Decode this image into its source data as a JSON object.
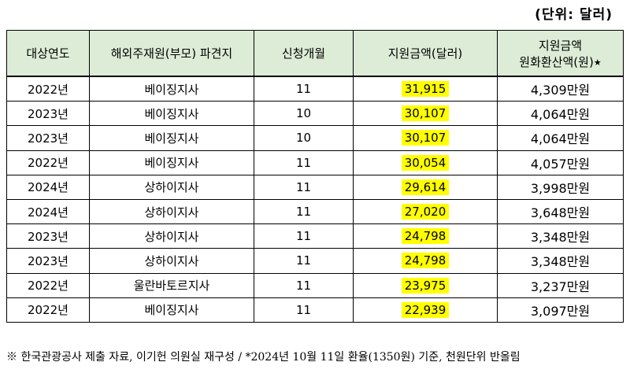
{
  "unit_note": "(단위: 달러)",
  "headers": {
    "year": "대상연도",
    "parent": "해외주재원(부모) 파견지",
    "count": "신청개월",
    "amount": "지원금액(달러)",
    "won_line1": "지원금액",
    "won_line2": "원화환산액(원)",
    "won_star": "★"
  },
  "rows": [
    {
      "year": "2022년",
      "branch": "베이징지사",
      "months": "11",
      "usd": "31,915",
      "won": "4,309만원"
    },
    {
      "year": "2023년",
      "branch": "베이징지사",
      "months": "10",
      "usd": "30,107",
      "won": "4,064만원"
    },
    {
      "year": "2023년",
      "branch": "베이징지사",
      "months": "10",
      "usd": "30,107",
      "won": "4,064만원"
    },
    {
      "year": "2022년",
      "branch": "베이징지사",
      "months": "11",
      "usd": "30,054",
      "won": "4,057만원"
    },
    {
      "year": "2024년",
      "branch": "상하이지사",
      "months": "11",
      "usd": "29,614",
      "won": "3,998만원"
    },
    {
      "year": "2024년",
      "branch": "상하이지사",
      "months": "11",
      "usd": "27,020",
      "won": "3,648만원"
    },
    {
      "year": "2023년",
      "branch": "상하이지사",
      "months": "11",
      "usd": "24,798",
      "won": "3,348만원"
    },
    {
      "year": "2023년",
      "branch": "상하이지사",
      "months": "11",
      "usd": "24,798",
      "won": "3,348만원"
    },
    {
      "year": "2022년",
      "branch": "울란바토르지사",
      "months": "11",
      "usd": "23,975",
      "won": "3,237만원"
    },
    {
      "year": "2022년",
      "branch": "베이징지사",
      "months": "11",
      "usd": "22,939",
      "won": "3,097만원"
    }
  ],
  "footnote": "※ 한국관광공사 제출 자료, 이기헌 의원실 재구성 / *2024년 10월 11일 환율(1350원) 기준, 천원단위 반올림",
  "colors": {
    "header_bg": "#dcecd6",
    "highlight": "#ffff00"
  }
}
